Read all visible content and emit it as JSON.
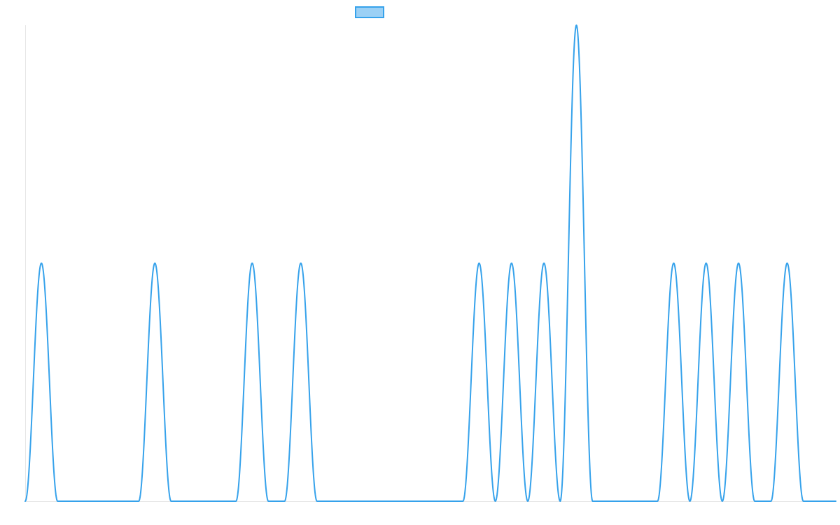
{
  "chart_data": {
    "type": "line",
    "x_range": [
      0,
      25
    ],
    "y_range": [
      0,
      2
    ],
    "grid": false,
    "legend_placement": "top-center",
    "series": [
      {
        "name": "",
        "color": "#36a2eb",
        "fill_color": "#9bd0f5",
        "peaks": [
          {
            "center": 0.5,
            "height": 1
          },
          {
            "center": 4,
            "height": 1
          },
          {
            "center": 7,
            "height": 1
          },
          {
            "center": 8.5,
            "height": 1
          },
          {
            "center": 14,
            "height": 1
          },
          {
            "center": 15,
            "height": 1
          },
          {
            "center": 16,
            "height": 1
          },
          {
            "center": 17,
            "height": 2
          },
          {
            "center": 20,
            "height": 1
          },
          {
            "center": 21,
            "height": 1
          },
          {
            "center": 22,
            "height": 1
          },
          {
            "center": 23.5,
            "height": 1
          }
        ],
        "peak_half_width": 0.5
      }
    ]
  }
}
